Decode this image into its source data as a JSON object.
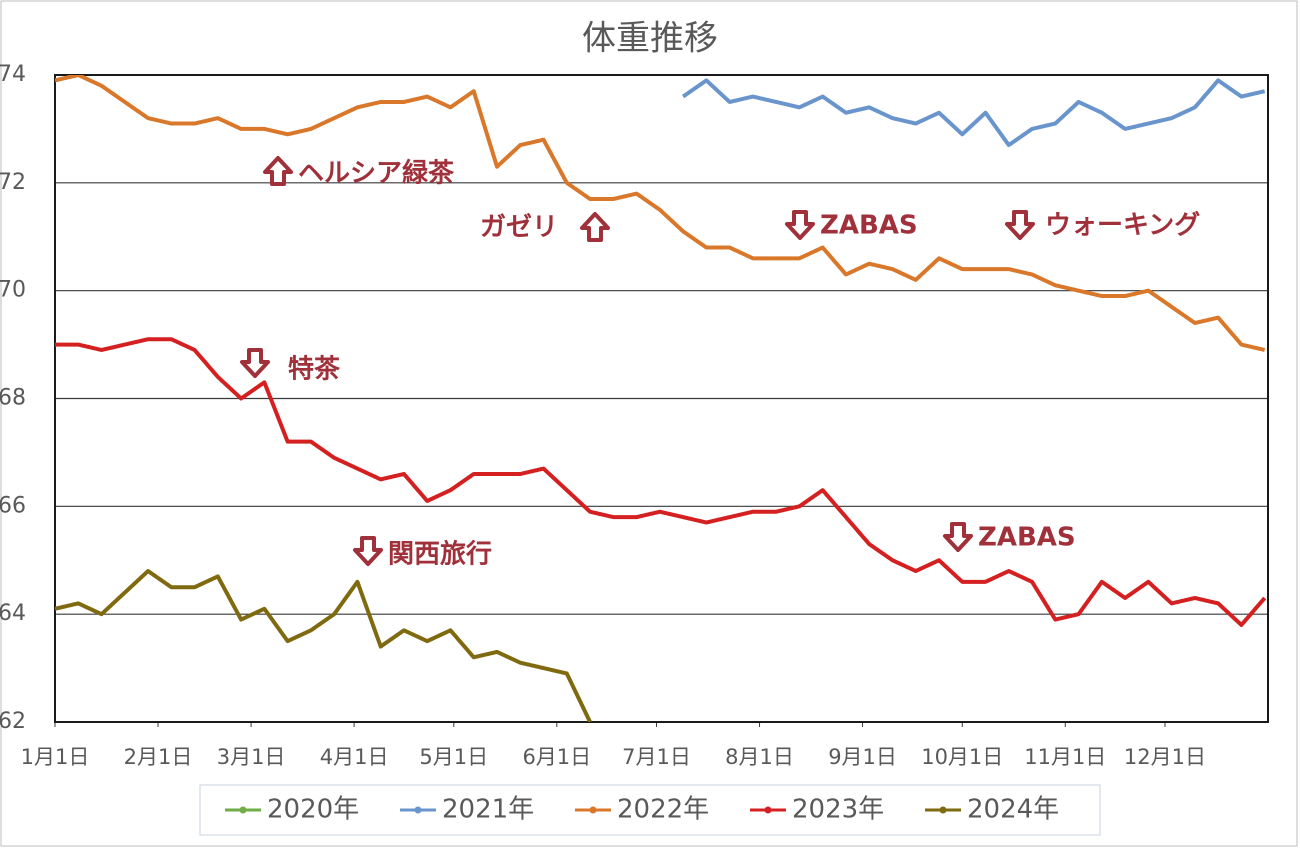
{
  "chart_data": {
    "type": "line",
    "title": "体重推移",
    "x": [
      0,
      7,
      14,
      21,
      28,
      35,
      42,
      49,
      56,
      63,
      70,
      77,
      84,
      91,
      98,
      105,
      112,
      119,
      126,
      133,
      140,
      147,
      154,
      161,
      168,
      175,
      182,
      189,
      196,
      203,
      210,
      217,
      224,
      231,
      238,
      245,
      252,
      259,
      266,
      273,
      280,
      287,
      294,
      301,
      308,
      315,
      322,
      329,
      336,
      343,
      350,
      357,
      364
    ],
    "xlim": [
      0,
      365
    ],
    "xticks": [
      {
        "value": 0,
        "label": "1月1日"
      },
      {
        "value": 31,
        "label": "2月1日"
      },
      {
        "value": 59,
        "label": "3月1日"
      },
      {
        "value": 90,
        "label": "4月1日"
      },
      {
        "value": 120,
        "label": "5月1日"
      },
      {
        "value": 151,
        "label": "6月1日"
      },
      {
        "value": 181,
        "label": "7月1日"
      },
      {
        "value": 212,
        "label": "8月1日"
      },
      {
        "value": 243,
        "label": "9月1日"
      },
      {
        "value": 273,
        "label": "10月1日"
      },
      {
        "value": 304,
        "label": "11月1日"
      },
      {
        "value": 334,
        "label": "12月1日"
      }
    ],
    "ylim": [
      62,
      74
    ],
    "yticks": [
      62,
      64,
      66,
      68,
      70,
      72,
      74
    ],
    "grid": true,
    "legend": "bottom",
    "series": [
      {
        "name": "2020年",
        "color": "#70ad47",
        "values": [
          null,
          null,
          null,
          null,
          null,
          null,
          null,
          null,
          null,
          null,
          null,
          null,
          null,
          null,
          null,
          null,
          null,
          null,
          null,
          null,
          null,
          null,
          null,
          null,
          null,
          null,
          null,
          null,
          null,
          null,
          null,
          null,
          null,
          null,
          null,
          null,
          null,
          null,
          null,
          null,
          null,
          null,
          null,
          null,
          null,
          null,
          null,
          null,
          null,
          null,
          null,
          null,
          null
        ]
      },
      {
        "name": "2021年",
        "color": "#6a95cc",
        "values": [
          null,
          null,
          null,
          null,
          null,
          null,
          null,
          null,
          null,
          null,
          null,
          null,
          null,
          null,
          null,
          null,
          null,
          null,
          null,
          null,
          null,
          null,
          null,
          null,
          null,
          null,
          null,
          73.6,
          73.9,
          73.5,
          73.6,
          73.5,
          73.4,
          73.6,
          73.3,
          73.4,
          73.2,
          73.1,
          73.3,
          72.9,
          73.3,
          72.7,
          73.0,
          73.1,
          73.5,
          73.3,
          73.0,
          73.1,
          73.2,
          73.4,
          73.9,
          73.6,
          73.7
        ]
      },
      {
        "name": "2022年",
        "color": "#d9782a",
        "values": [
          73.9,
          74.0,
          73.8,
          73.5,
          73.2,
          73.1,
          73.1,
          73.2,
          73.0,
          73.0,
          72.9,
          73.0,
          73.2,
          73.4,
          73.5,
          73.5,
          73.6,
          73.4,
          73.7,
          72.3,
          72.7,
          72.8,
          72.0,
          71.7,
          71.7,
          71.8,
          71.5,
          71.1,
          70.8,
          70.8,
          70.6,
          70.6,
          70.6,
          70.8,
          70.3,
          70.5,
          70.4,
          70.2,
          70.6,
          70.4,
          70.4,
          70.4,
          70.3,
          70.1,
          70.0,
          69.9,
          69.9,
          70.0,
          69.7,
          69.4,
          69.5,
          69.0,
          68.9
        ]
      },
      {
        "name": "2023年",
        "color": "#d42020",
        "values": [
          69.0,
          69.0,
          68.9,
          69.0,
          69.1,
          69.1,
          68.9,
          68.4,
          68.0,
          68.3,
          67.2,
          67.2,
          66.9,
          66.7,
          66.5,
          66.6,
          66.1,
          66.3,
          66.6,
          66.6,
          66.6,
          66.7,
          66.3,
          65.9,
          65.8,
          65.8,
          65.9,
          65.8,
          65.7,
          65.8,
          65.9,
          65.9,
          66.0,
          66.3,
          65.8,
          65.3,
          65.0,
          64.8,
          65.0,
          64.6,
          64.6,
          64.8,
          64.6,
          63.9,
          64.0,
          64.6,
          64.3,
          64.6,
          64.2,
          64.3,
          64.2,
          63.8,
          64.3
        ]
      },
      {
        "name": "2024年",
        "color": "#7f6a10",
        "values": [
          64.1,
          64.2,
          64.0,
          64.4,
          64.8,
          64.5,
          64.5,
          64.7,
          63.9,
          64.1,
          63.5,
          63.7,
          64.0,
          64.6,
          63.4,
          63.7,
          63.5,
          63.7,
          63.2,
          63.3,
          63.1,
          63.0,
          62.9,
          62.0,
          null,
          null,
          null,
          null,
          null,
          null,
          null,
          null,
          null,
          null,
          null,
          null,
          null,
          null,
          null,
          null,
          null,
          null,
          null,
          null,
          null,
          null,
          null,
          null,
          null,
          null,
          null,
          null,
          null
        ]
      }
    ],
    "annotations": [
      "ヘルシア緑茶",
      "ガゼリ",
      "ZABAS",
      "ウォーキング",
      "特茶",
      "関西旅行",
      "ZABAS"
    ]
  }
}
